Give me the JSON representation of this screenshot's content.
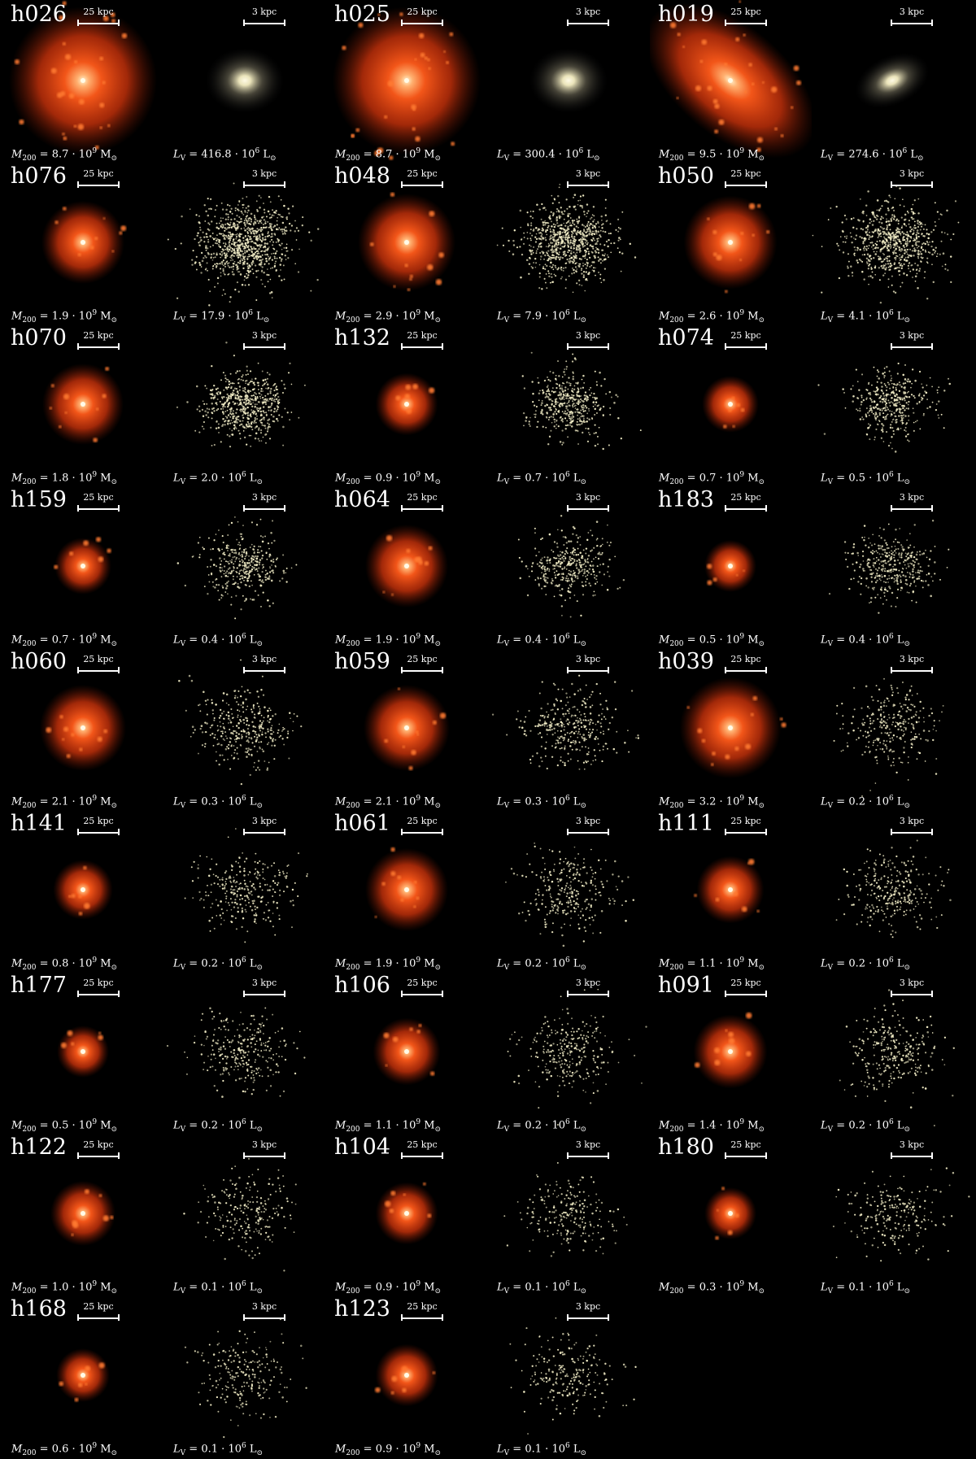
{
  "panels": [
    {
      "name": "h026",
      "dm_scale": "25 kpc",
      "star_scale": "3 kpc",
      "mass_coef": "8.7",
      "lum_coef": "416.8"
    },
    {
      "name": "h025",
      "dm_scale": "25 kpc",
      "star_scale": "3 kpc",
      "mass_coef": "8.7",
      "lum_coef": "300.4"
    },
    {
      "name": "h019",
      "dm_scale": "25 kpc",
      "star_scale": "3 kpc",
      "mass_coef": "9.5",
      "lum_coef": "274.6"
    },
    {
      "name": "h076",
      "dm_scale": "25 kpc",
      "star_scale": "3 kpc",
      "mass_coef": "1.9",
      "lum_coef": "17.9"
    },
    {
      "name": "h048",
      "dm_scale": "25 kpc",
      "star_scale": "3 kpc",
      "mass_coef": "2.9",
      "lum_coef": "7.9"
    },
    {
      "name": "h050",
      "dm_scale": "25 kpc",
      "star_scale": "3 kpc",
      "mass_coef": "2.6",
      "lum_coef": "4.1"
    },
    {
      "name": "h070",
      "dm_scale": "25 kpc",
      "star_scale": "3 kpc",
      "mass_coef": "1.8",
      "lum_coef": "2.0"
    },
    {
      "name": "h132",
      "dm_scale": "25 kpc",
      "star_scale": "3 kpc",
      "mass_coef": "0.9",
      "lum_coef": "0.7"
    },
    {
      "name": "h074",
      "dm_scale": "25 kpc",
      "star_scale": "3 kpc",
      "mass_coef": "0.7",
      "lum_coef": "0.5"
    },
    {
      "name": "h159",
      "dm_scale": "25 kpc",
      "star_scale": "3 kpc",
      "mass_coef": "0.7",
      "lum_coef": "0.4"
    },
    {
      "name": "h064",
      "dm_scale": "25 kpc",
      "star_scale": "3 kpc",
      "mass_coef": "1.9",
      "lum_coef": "0.4"
    },
    {
      "name": "h183",
      "dm_scale": "25 kpc",
      "star_scale": "3 kpc",
      "mass_coef": "0.5",
      "lum_coef": "0.4"
    },
    {
      "name": "h060",
      "dm_scale": "25 kpc",
      "star_scale": "3 kpc",
      "mass_coef": "2.1",
      "lum_coef": "0.3"
    },
    {
      "name": "h059",
      "dm_scale": "25 kpc",
      "star_scale": "3 kpc",
      "mass_coef": "2.1",
      "lum_coef": "0.3"
    },
    {
      "name": "h039",
      "dm_scale": "25 kpc",
      "star_scale": "3 kpc",
      "mass_coef": "3.2",
      "lum_coef": "0.2"
    },
    {
      "name": "h141",
      "dm_scale": "25 kpc",
      "star_scale": "3 kpc",
      "mass_coef": "0.8",
      "lum_coef": "0.2"
    },
    {
      "name": "h061",
      "dm_scale": "25 kpc",
      "star_scale": "3 kpc",
      "mass_coef": "1.9",
      "lum_coef": "0.2"
    },
    {
      "name": "h111",
      "dm_scale": "25 kpc",
      "star_scale": "3 kpc",
      "mass_coef": "1.1",
      "lum_coef": "0.2"
    },
    {
      "name": "h177",
      "dm_scale": "25 kpc",
      "star_scale": "3 kpc",
      "mass_coef": "0.5",
      "lum_coef": "0.2"
    },
    {
      "name": "h106",
      "dm_scale": "25 kpc",
      "star_scale": "3 kpc",
      "mass_coef": "1.1",
      "lum_coef": "0.2"
    },
    {
      "name": "h091",
      "dm_scale": "25 kpc",
      "star_scale": "3 kpc",
      "mass_coef": "1.4",
      "lum_coef": "0.2"
    },
    {
      "name": "h122",
      "dm_scale": "25 kpc",
      "star_scale": "3 kpc",
      "mass_coef": "1.0",
      "lum_coef": "0.1"
    },
    {
      "name": "h104",
      "dm_scale": "25 kpc",
      "star_scale": "3 kpc",
      "mass_coef": "0.9",
      "lum_coef": "0.1"
    },
    {
      "name": "h180",
      "dm_scale": "25 kpc",
      "star_scale": "3 kpc",
      "mass_coef": "0.3",
      "lum_coef": "0.1"
    },
    {
      "name": "h168",
      "dm_scale": "25 kpc",
      "star_scale": "3 kpc",
      "mass_coef": "0.6",
      "lum_coef": "0.1"
    },
    {
      "name": "h123",
      "dm_scale": "25 kpc",
      "star_scale": "3 kpc",
      "mass_coef": "0.9",
      "lum_coef": "0.1"
    }
  ],
  "symbols": {
    "mass": "M",
    "mass_sub": "200",
    "lum": "L",
    "lum_sub": "V",
    "dot": "·",
    "eq": "=",
    "exp_base": "10",
    "mass_exp": "9",
    "lum_exp": "6",
    "msun": "M",
    "lsun": "L",
    "sun_sub": "⊙"
  },
  "colors": {
    "background": "#000000",
    "dm_glow": "#ff5a1a",
    "dm_core": "#fff2c0",
    "stars": "#f4f0c8",
    "text": "#ffffff"
  }
}
